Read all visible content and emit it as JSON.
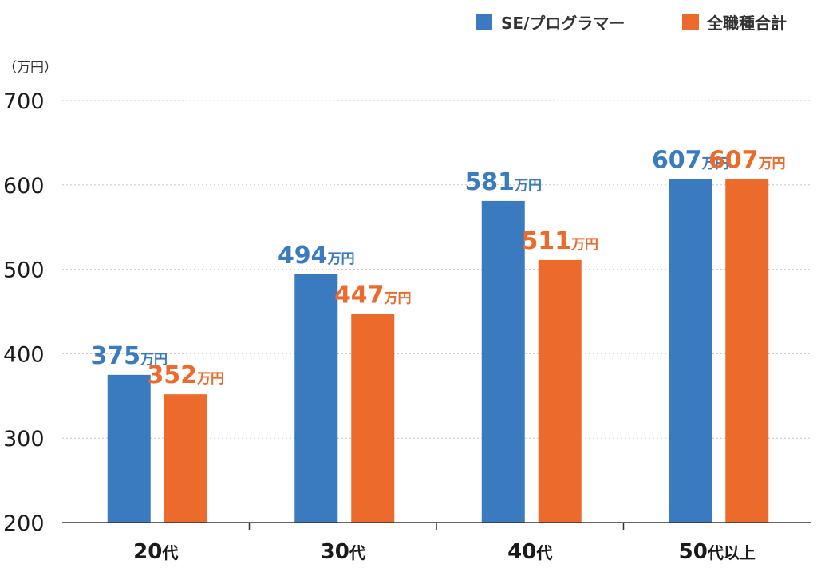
{
  "chart_data": {
    "type": "bar",
    "unit_label": "（万円）",
    "value_suffix": "万円",
    "categories": [
      {
        "num": "20",
        "suffix": "代"
      },
      {
        "num": "30",
        "suffix": "代"
      },
      {
        "num": "40",
        "suffix": "代"
      },
      {
        "num": "50",
        "suffix": "代以上"
      }
    ],
    "series": [
      {
        "name": "SE/プログラマー",
        "color": "#3a7bbf",
        "values": [
          375,
          494,
          581,
          607
        ],
        "labels": [
          "375",
          "494",
          "581",
          "607"
        ]
      },
      {
        "name": "全職種合計",
        "color": "#ec6a2c",
        "values": [
          352,
          447,
          511,
          607
        ],
        "labels": [
          "352",
          "447",
          "511",
          "607"
        ]
      }
    ],
    "ylim": [
      200,
      700
    ],
    "yticks": [
      "200",
      "300",
      "400",
      "500",
      "600",
      "700"
    ],
    "grid": true,
    "legend_position": "top-right"
  }
}
